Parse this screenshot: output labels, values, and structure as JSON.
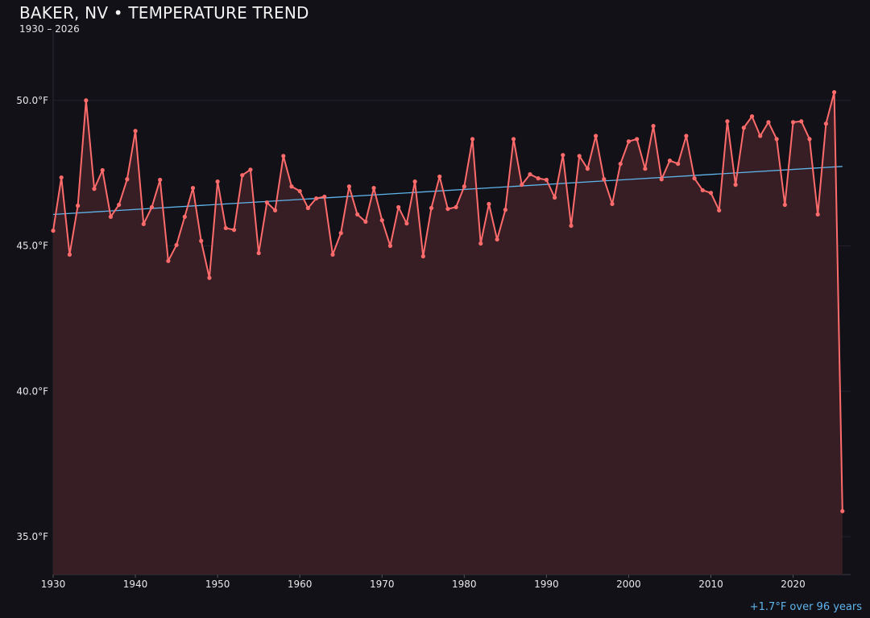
{
  "chart_data": {
    "type": "line",
    "title": "BAKER, NV • TEMPERATURE TREND",
    "subtitle": "1930 – 2026",
    "annotation": "+1.7°F over 96 years",
    "xlim": [
      1930,
      2027
    ],
    "ylim": [
      33.7,
      52.4
    ],
    "x_ticks": [
      1930,
      1940,
      1950,
      1960,
      1970,
      1980,
      1990,
      2000,
      2010,
      2020
    ],
    "y_ticks": [
      35.0,
      40.0,
      45.0,
      50.0
    ],
    "y_tick_labels": [
      "35.0°F",
      "40.0°F",
      "45.0°F",
      "50.0°F"
    ],
    "grid": true,
    "colors": {
      "series": "#ff6b6b",
      "fill": "#3a2026",
      "trend": "#5fb4ea",
      "background": "#121118"
    },
    "x": [
      1930,
      1931,
      1932,
      1933,
      1934,
      1935,
      1936,
      1937,
      1938,
      1939,
      1940,
      1941,
      1942,
      1943,
      1944,
      1945,
      1946,
      1947,
      1948,
      1949,
      1950,
      1951,
      1952,
      1953,
      1954,
      1955,
      1956,
      1957,
      1958,
      1959,
      1960,
      1961,
      1962,
      1963,
      1964,
      1965,
      1966,
      1967,
      1968,
      1969,
      1970,
      1971,
      1972,
      1973,
      1974,
      1975,
      1976,
      1977,
      1978,
      1979,
      1980,
      1981,
      1982,
      1983,
      1984,
      1985,
      1986,
      1987,
      1988,
      1989,
      1990,
      1991,
      1992,
      1993,
      1994,
      1995,
      1996,
      1997,
      1998,
      1999,
      2000,
      2001,
      2002,
      2003,
      2004,
      2005,
      2006,
      2007,
      2008,
      2009,
      2010,
      2011,
      2012,
      2013,
      2014,
      2015,
      2016,
      2017,
      2018,
      2019,
      2020,
      2021,
      2022,
      2023,
      2024,
      2025,
      2026
    ],
    "series": [
      {
        "values": [
          45.52,
          47.35,
          44.7,
          46.38,
          50.0,
          46.96,
          47.6,
          46.0,
          46.41,
          47.29,
          48.95,
          45.75,
          46.33,
          47.27,
          44.48,
          45.03,
          46.0,
          46.99,
          45.17,
          43.9,
          47.21,
          45.61,
          45.55,
          47.43,
          47.62,
          44.75,
          46.49,
          46.22,
          48.09,
          47.04,
          46.88,
          46.3,
          46.63,
          46.69,
          44.7,
          45.44,
          47.04,
          46.08,
          45.83,
          46.99,
          45.88,
          45.0,
          46.33,
          45.77,
          47.21,
          44.64,
          46.3,
          47.38,
          46.27,
          46.33,
          47.04,
          48.67,
          45.08,
          46.44,
          45.22,
          46.24,
          48.67,
          47.1,
          47.46,
          47.32,
          47.27,
          46.66,
          48.12,
          45.69,
          48.09,
          47.65,
          48.78,
          47.29,
          46.44,
          47.82,
          48.59,
          48.67,
          47.65,
          49.12,
          47.29,
          47.93,
          47.82,
          48.78,
          47.32,
          46.91,
          46.82,
          46.22,
          49.28,
          47.1,
          49.06,
          49.45,
          48.78,
          49.25,
          48.67,
          46.41,
          49.25,
          49.28,
          48.67,
          46.08,
          49.2,
          50.28,
          35.88
        ]
      }
    ],
    "trend": {
      "x": [
        1930,
        2026
      ],
      "y": [
        46.08,
        47.73
      ]
    }
  }
}
